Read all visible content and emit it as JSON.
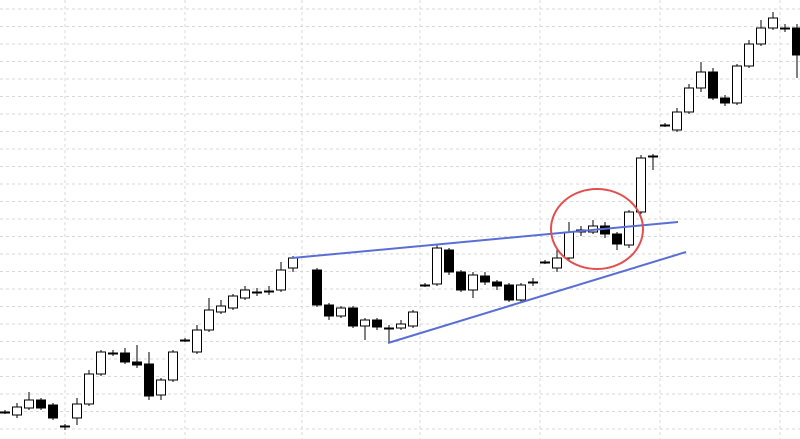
{
  "chart_data": {
    "type": "candlestick",
    "categories": [
      null,
      null,
      null,
      null,
      null,
      null,
      null,
      null,
      null,
      null,
      null,
      null,
      null,
      null,
      null,
      null,
      null,
      null,
      null,
      null,
      null,
      null,
      null,
      null,
      null,
      null,
      null,
      null,
      null,
      null,
      null,
      null,
      null,
      null,
      null,
      null,
      null,
      null,
      null,
      null,
      null,
      null,
      null,
      null,
      null,
      null,
      null,
      null,
      null,
      null,
      null,
      null,
      null,
      null,
      null,
      null,
      null,
      null,
      null,
      null,
      null,
      null,
      null,
      null,
      null,
      null,
      null
    ],
    "open": [
      27,
      24,
      31,
      39,
      34,
      13,
      21,
      35,
      65,
      86,
      86,
      77,
      75,
      44,
      59,
      99,
      87,
      109,
      127,
      131,
      141,
      147,
      148,
      149,
      171,
      null,
      169,
      134,
      123,
      131,
      113,
      119,
      111,
      111,
      113,
      154,
      155,
      189,
      167,
      149,
      163,
      157,
      154,
      139,
      157,
      177,
      171,
      181,
      209,
      207,
      213,
      205,
      194,
      227,
      283,
      314,
      309,
      327,
      351,
      367,
      341,
      336,
      373,
      395,
      411,
      411,
      411
    ],
    "high": [
      29,
      36,
      47,
      41,
      36,
      15,
      41,
      69,
      89,
      89,
      91,
      94,
      87,
      61,
      89,
      101,
      114,
      141,
      139,
      145,
      153,
      151,
      153,
      177,
      183,
      null,
      171,
      136,
      133,
      133,
      121,
      121,
      114,
      119,
      129,
      156,
      194,
      191,
      169,
      167,
      167,
      159,
      156,
      156,
      161,
      179,
      189,
      217,
      213,
      219,
      217,
      207,
      229,
      284,
      285,
      316,
      331,
      355,
      377,
      371,
      344,
      375,
      399,
      419,
      427,
      415,
      415
    ],
    "low": [
      25,
      21,
      29,
      29,
      19,
      9,
      14,
      33,
      63,
      83,
      75,
      71,
      39,
      39,
      57,
      97,
      85,
      107,
      125,
      129,
      139,
      143,
      144,
      147,
      167,
      null,
      132,
      119,
      121,
      111,
      99,
      109,
      97,
      109,
      111,
      152,
      153,
      164,
      147,
      141,
      154,
      149,
      137,
      137,
      153,
      175,
      167,
      179,
      203,
      205,
      201,
      189,
      191,
      225,
      269,
      312,
      307,
      325,
      347,
      339,
      333,
      334,
      371,
      393,
      409,
      407,
      361
    ],
    "close": [
      27,
      32,
      39,
      31,
      21,
      13,
      35,
      65,
      87,
      86,
      77,
      74,
      43,
      59,
      87,
      99,
      109,
      129,
      133,
      143,
      149,
      147,
      148,
      169,
      181,
      null,
      134,
      123,
      131,
      113,
      119,
      112,
      111,
      115,
      127,
      154,
      191,
      167,
      149,
      164,
      157,
      153,
      139,
      154,
      157,
      177,
      181,
      207,
      207,
      213,
      205,
      195,
      227,
      281,
      283,
      314,
      327,
      351,
      367,
      341,
      336,
      373,
      395,
      411,
      421,
      411,
      384
    ],
    "ylim": [
      0,
      439
    ],
    "yticks": [
      10,
      27.5,
      45,
      62.5,
      80,
      97.5,
      115,
      132.5,
      150,
      167.5,
      185,
      202.5,
      220,
      237.5,
      255,
      272.5,
      290,
      307.5,
      325,
      342.5,
      360,
      377.5,
      395,
      412.5,
      430
    ],
    "grid": true,
    "up_color": "#ffffff",
    "down_color": "#000000"
  }
}
